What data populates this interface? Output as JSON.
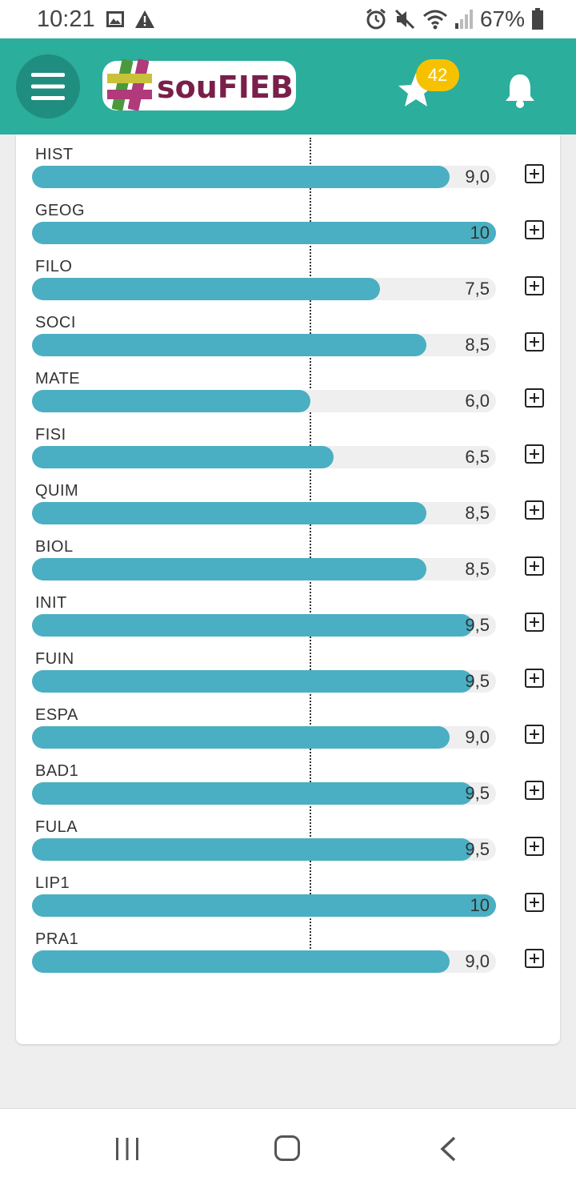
{
  "status_bar": {
    "time": "10:21",
    "battery_text": "67%",
    "icons": [
      "image-icon",
      "warning-icon",
      "alarm-icon",
      "mute-icon",
      "wifi-icon",
      "signal-icon",
      "battery-icon"
    ]
  },
  "header": {
    "logo_text": "souFIEB",
    "star_badge": "42",
    "colors": {
      "header_bg": "#2bae9c",
      "menu_bg": "#1f8d7f",
      "badge": "#f6c200",
      "logo_text": "#7a1f4a"
    }
  },
  "grades": {
    "max": 10,
    "reference_line": 6,
    "bar_color": "#4aafc2",
    "items": [
      {
        "subject": "HIST",
        "value": 9.0,
        "display": "9,0"
      },
      {
        "subject": "GEOG",
        "value": 10,
        "display": "10"
      },
      {
        "subject": "FILO",
        "value": 7.5,
        "display": "7,5"
      },
      {
        "subject": "SOCI",
        "value": 8.5,
        "display": "8,5"
      },
      {
        "subject": "MATE",
        "value": 6.0,
        "display": "6,0"
      },
      {
        "subject": "FISI",
        "value": 6.5,
        "display": "6,5"
      },
      {
        "subject": "QUIM",
        "value": 8.5,
        "display": "8,5"
      },
      {
        "subject": "BIOL",
        "value": 8.5,
        "display": "8,5"
      },
      {
        "subject": "INIT",
        "value": 9.5,
        "display": "9,5"
      },
      {
        "subject": "FUIN",
        "value": 9.5,
        "display": "9,5"
      },
      {
        "subject": "ESPA",
        "value": 9.0,
        "display": "9,0"
      },
      {
        "subject": "BAD1",
        "value": 9.5,
        "display": "9,5"
      },
      {
        "subject": "FULA",
        "value": 9.5,
        "display": "9,5"
      },
      {
        "subject": "LIP1",
        "value": 10,
        "display": "10"
      },
      {
        "subject": "PRA1",
        "value": 9.0,
        "display": "9,0"
      }
    ]
  },
  "nav_bar": {
    "icons": [
      "recent-apps-icon",
      "home-icon",
      "back-icon"
    ]
  }
}
